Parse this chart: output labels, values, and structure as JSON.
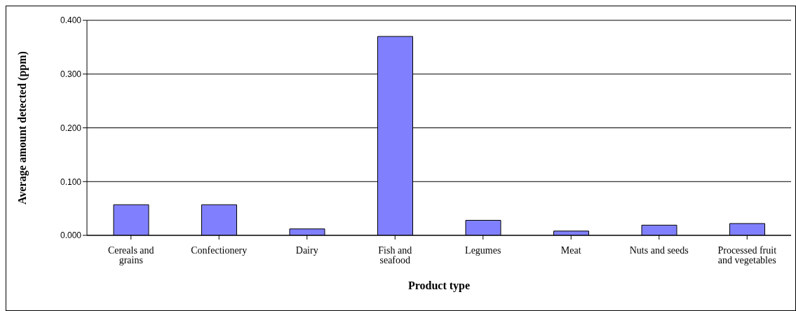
{
  "chart_data": {
    "type": "bar",
    "xlabel": "Product type",
    "ylabel": "Average amount detected (ppm)",
    "categories": [
      "Cereals and grains",
      "Confectionery",
      "Dairy",
      "Fish and seafood",
      "Legumes",
      "Meat",
      "Nuts and seeds",
      "Processed fruit and vegetables"
    ],
    "values": [
      0.057,
      0.057,
      0.012,
      0.37,
      0.028,
      0.008,
      0.019,
      0.022
    ],
    "color": "#8080ff",
    "ylim": [
      0,
      0.4
    ],
    "yticks": [
      {
        "value": 0,
        "label": "0.000"
      },
      {
        "value": 0.1,
        "label": "0.100"
      },
      {
        "value": 0.2,
        "label": "0.200"
      },
      {
        "value": 0.3,
        "label": "0.300"
      },
      {
        "value": 0.4,
        "label": "0.400"
      }
    ],
    "grid": "y",
    "legend": false
  }
}
